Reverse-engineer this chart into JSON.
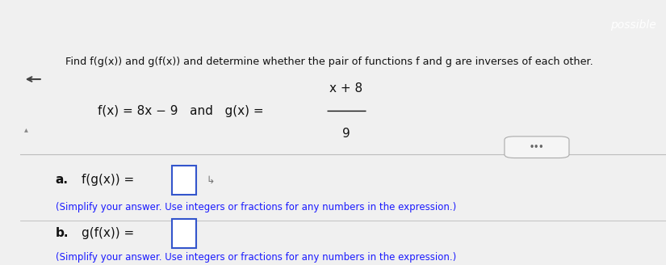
{
  "header_bg_color": "#8B1A2A",
  "header_text": "possible",
  "header_text_color": "#ffffff",
  "body_bg_color": "#f0f0f0",
  "main_question": "Find f(g(x)) and g(f(x)) and determine whether the pair of functions f and g are inverses of each other.",
  "question_text_color": "#111111",
  "gx_numerator": "x + 8",
  "gx_denominator": "9",
  "part_a_note": "(Simplify your answer. Use integers or fractions for any numbers in the expression.)",
  "part_b_note": "(Simplify your answer. Use integers or fractions for any numbers in the expression.)",
  "divider_color": "#bbbbbb",
  "label_color": "#111111",
  "note_color": "#1a1aff",
  "box_border_color": "#3355cc",
  "box_fill_color": "#ffffff",
  "figsize": [
    8.25,
    3.28
  ],
  "dpi": 100
}
